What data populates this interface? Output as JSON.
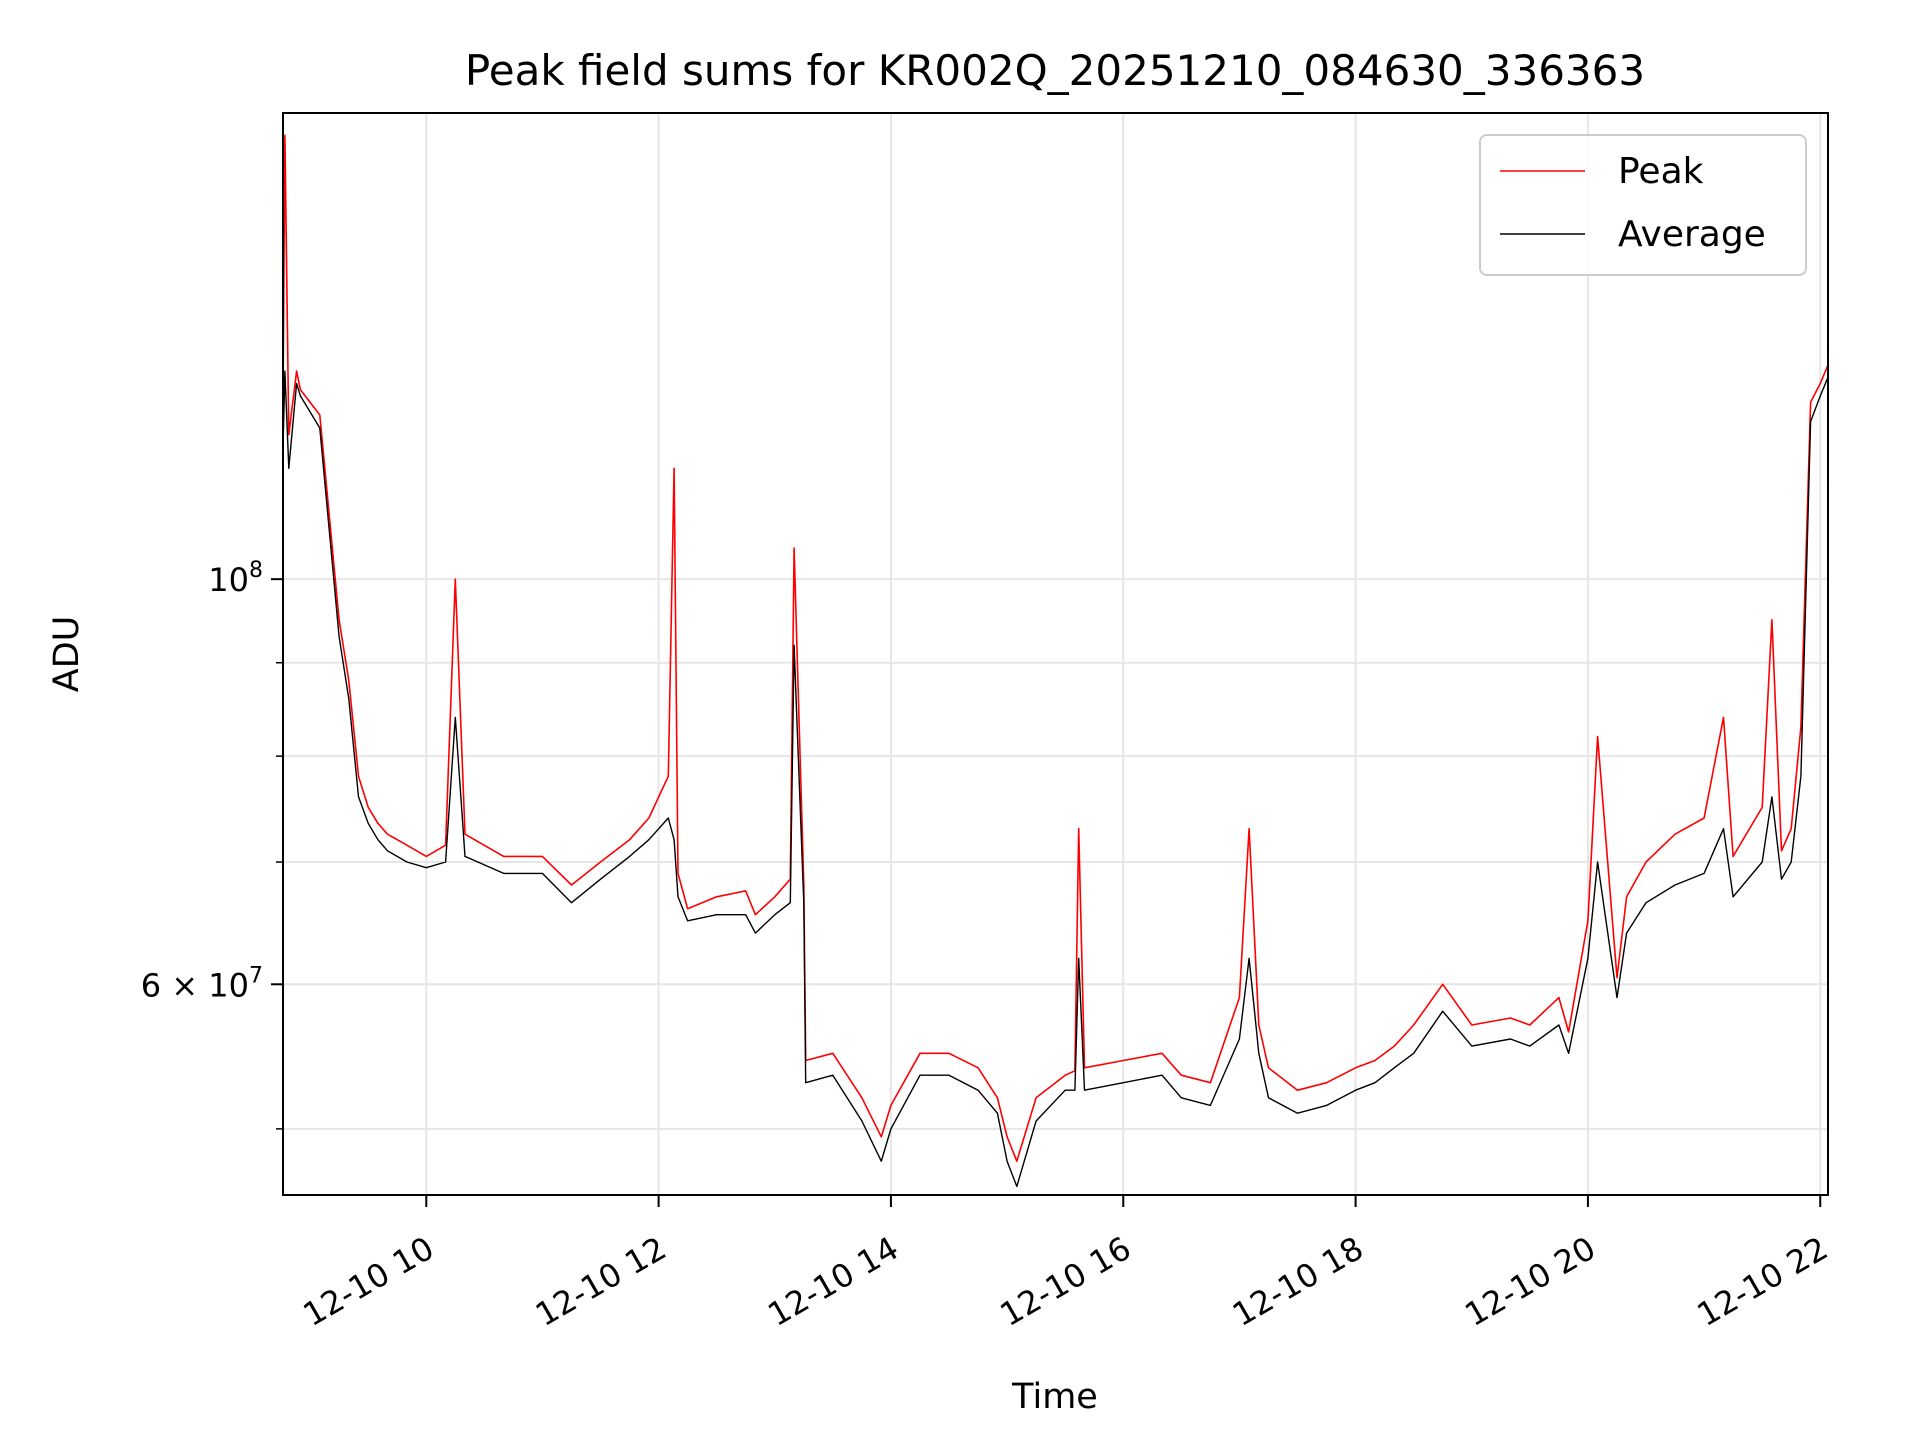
{
  "chart_data": {
    "type": "line",
    "title": "Peak field sums for KR002Q_20251210_084630_336363",
    "xlabel": "Time",
    "ylabel": "ADU",
    "y_scale": "log",
    "xlim": [
      "2025-12-10 08:46",
      "2025-12-10 22:04"
    ],
    "ylim": [
      46000000,
      180000000
    ],
    "grid": true,
    "legend_position": "top-right",
    "x_ticks": [
      {
        "value": "2025-12-10 10:00",
        "label": "12-10 10"
      },
      {
        "value": "2025-12-10 12:00",
        "label": "12-10 12"
      },
      {
        "value": "2025-12-10 14:00",
        "label": "12-10 14"
      },
      {
        "value": "2025-12-10 16:00",
        "label": "12-10 16"
      },
      {
        "value": "2025-12-10 18:00",
        "label": "12-10 18"
      },
      {
        "value": "2025-12-10 20:00",
        "label": "12-10 20"
      },
      {
        "value": "2025-12-10 22:00",
        "label": "12-10 22"
      }
    ],
    "y_major_ticks": [
      {
        "value": 60000000,
        "label": "6 × 10",
        "exp": "7"
      },
      {
        "value": 100000000,
        "label": "10",
        "exp": "8"
      }
    ],
    "y_minor_ticks": [
      50000000,
      70000000,
      80000000,
      90000000
    ],
    "series": [
      {
        "name": "Peak",
        "color": "#ff0000",
        "x": [
          "2025-12-10 08:46",
          "2025-12-10 08:47",
          "2025-12-10 08:49",
          "2025-12-10 08:53",
          "2025-12-10 08:55",
          "2025-12-10 09:05",
          "2025-12-10 09:10",
          "2025-12-10 09:15",
          "2025-12-10 09:20",
          "2025-12-10 09:25",
          "2025-12-10 09:30",
          "2025-12-10 09:35",
          "2025-12-10 09:40",
          "2025-12-10 09:50",
          "2025-12-10 10:00",
          "2025-12-10 10:10",
          "2025-12-10 10:15",
          "2025-12-10 10:20",
          "2025-12-10 10:40",
          "2025-12-10 11:00",
          "2025-12-10 11:15",
          "2025-12-10 11:30",
          "2025-12-10 11:45",
          "2025-12-10 11:55",
          "2025-12-10 12:05",
          "2025-12-10 12:08",
          "2025-12-10 12:10",
          "2025-12-10 12:15",
          "2025-12-10 12:30",
          "2025-12-10 12:45",
          "2025-12-10 12:50",
          "2025-12-10 13:00",
          "2025-12-10 13:08",
          "2025-12-10 13:10",
          "2025-12-10 13:15",
          "2025-12-10 13:16",
          "2025-12-10 13:30",
          "2025-12-10 13:45",
          "2025-12-10 13:55",
          "2025-12-10 14:00",
          "2025-12-10 14:15",
          "2025-12-10 14:30",
          "2025-12-10 14:45",
          "2025-12-10 14:55",
          "2025-12-10 15:00",
          "2025-12-10 15:05",
          "2025-12-10 15:15",
          "2025-12-10 15:30",
          "2025-12-10 15:35",
          "2025-12-10 15:37",
          "2025-12-10 15:40",
          "2025-12-10 16:00",
          "2025-12-10 16:20",
          "2025-12-10 16:30",
          "2025-12-10 16:45",
          "2025-12-10 17:00",
          "2025-12-10 17:05",
          "2025-12-10 17:10",
          "2025-12-10 17:15",
          "2025-12-10 17:30",
          "2025-12-10 17:45",
          "2025-12-10 18:00",
          "2025-12-10 18:10",
          "2025-12-10 18:20",
          "2025-12-10 18:30",
          "2025-12-10 18:45",
          "2025-12-10 19:00",
          "2025-12-10 19:20",
          "2025-12-10 19:30",
          "2025-12-10 19:45",
          "2025-12-10 19:50",
          "2025-12-10 20:00",
          "2025-12-10 20:05",
          "2025-12-10 20:15",
          "2025-12-10 20:20",
          "2025-12-10 20:30",
          "2025-12-10 20:45",
          "2025-12-10 21:00",
          "2025-12-10 21:10",
          "2025-12-10 21:15",
          "2025-12-10 21:30",
          "2025-12-10 21:35",
          "2025-12-10 21:40",
          "2025-12-10 21:45",
          "2025-12-10 21:50",
          "2025-12-10 21:55",
          "2025-12-10 22:00",
          "2025-12-10 22:04"
        ],
        "values": [
          125000000,
          175000000,
          120000000,
          130000000,
          127000000,
          123000000,
          108000000,
          95000000,
          88000000,
          78000000,
          75000000,
          73500000,
          72500000,
          71500000,
          70500000,
          71500000,
          100000000,
          72500000,
          70500000,
          70500000,
          68000000,
          70000000,
          72000000,
          74000000,
          78000000,
          115000000,
          69000000,
          66000000,
          67000000,
          67500000,
          65500000,
          67000000,
          68500000,
          104000000,
          68000000,
          54500000,
          55000000,
          52000000,
          49500000,
          51500000,
          55000000,
          55000000,
          54000000,
          52000000,
          49500000,
          48000000,
          52000000,
          53500000,
          53800000,
          73000000,
          54000000,
          54500000,
          55000000,
          53500000,
          53000000,
          59000000,
          73000000,
          57000000,
          54000000,
          52500000,
          53000000,
          54000000,
          54500000,
          55500000,
          57000000,
          60000000,
          57000000,
          57500000,
          57000000,
          59000000,
          56500000,
          65000000,
          82000000,
          60500000,
          67000000,
          70000000,
          72500000,
          74000000,
          84000000,
          70500000,
          75000000,
          95000000,
          71000000,
          73000000,
          83000000,
          125000000,
          128000000,
          131000000
        ]
      },
      {
        "name": "Average",
        "color": "#000000",
        "x": [
          "2025-12-10 08:46",
          "2025-12-10 08:47",
          "2025-12-10 08:49",
          "2025-12-10 08:53",
          "2025-12-10 08:55",
          "2025-12-10 09:05",
          "2025-12-10 09:10",
          "2025-12-10 09:15",
          "2025-12-10 09:20",
          "2025-12-10 09:25",
          "2025-12-10 09:30",
          "2025-12-10 09:35",
          "2025-12-10 09:40",
          "2025-12-10 09:50",
          "2025-12-10 10:00",
          "2025-12-10 10:10",
          "2025-12-10 10:15",
          "2025-12-10 10:20",
          "2025-12-10 10:40",
          "2025-12-10 11:00",
          "2025-12-10 11:15",
          "2025-12-10 11:30",
          "2025-12-10 11:45",
          "2025-12-10 11:55",
          "2025-12-10 12:05",
          "2025-12-10 12:08",
          "2025-12-10 12:10",
          "2025-12-10 12:15",
          "2025-12-10 12:30",
          "2025-12-10 12:45",
          "2025-12-10 12:50",
          "2025-12-10 13:00",
          "2025-12-10 13:08",
          "2025-12-10 13:10",
          "2025-12-10 13:15",
          "2025-12-10 13:16",
          "2025-12-10 13:30",
          "2025-12-10 13:45",
          "2025-12-10 13:55",
          "2025-12-10 14:00",
          "2025-12-10 14:15",
          "2025-12-10 14:30",
          "2025-12-10 14:45",
          "2025-12-10 14:55",
          "2025-12-10 15:00",
          "2025-12-10 15:05",
          "2025-12-10 15:15",
          "2025-12-10 15:30",
          "2025-12-10 15:35",
          "2025-12-10 15:37",
          "2025-12-10 15:40",
          "2025-12-10 16:00",
          "2025-12-10 16:20",
          "2025-12-10 16:30",
          "2025-12-10 16:45",
          "2025-12-10 17:00",
          "2025-12-10 17:05",
          "2025-12-10 17:10",
          "2025-12-10 17:15",
          "2025-12-10 17:30",
          "2025-12-10 17:45",
          "2025-12-10 18:00",
          "2025-12-10 18:10",
          "2025-12-10 18:20",
          "2025-12-10 18:30",
          "2025-12-10 18:45",
          "2025-12-10 19:00",
          "2025-12-10 19:20",
          "2025-12-10 19:30",
          "2025-12-10 19:45",
          "2025-12-10 19:50",
          "2025-12-10 20:00",
          "2025-12-10 20:05",
          "2025-12-10 20:15",
          "2025-12-10 20:20",
          "2025-12-10 20:30",
          "2025-12-10 20:45",
          "2025-12-10 21:00",
          "2025-12-10 21:10",
          "2025-12-10 21:15",
          "2025-12-10 21:30",
          "2025-12-10 21:35",
          "2025-12-10 21:40",
          "2025-12-10 21:45",
          "2025-12-10 21:50",
          "2025-12-10 21:55",
          "2025-12-10 22:00",
          "2025-12-10 22:04"
        ],
        "values": [
          118000000,
          130000000,
          115000000,
          128000000,
          126000000,
          121000000,
          106000000,
          93000000,
          86000000,
          76000000,
          73500000,
          72000000,
          71000000,
          70000000,
          69500000,
          70000000,
          84000000,
          70500000,
          69000000,
          69000000,
          66500000,
          68500000,
          70500000,
          72000000,
          74000000,
          72000000,
          67000000,
          65000000,
          65500000,
          65500000,
          64000000,
          65500000,
          66500000,
          92000000,
          66500000,
          53000000,
          53500000,
          50500000,
          48000000,
          50000000,
          53500000,
          53500000,
          52500000,
          51000000,
          48000000,
          46500000,
          50500000,
          52500000,
          52500000,
          62000000,
          52500000,
          53000000,
          53500000,
          52000000,
          51500000,
          56000000,
          62000000,
          55000000,
          52000000,
          51000000,
          51500000,
          52500000,
          53000000,
          54000000,
          55000000,
          58000000,
          55500000,
          56000000,
          55500000,
          57000000,
          55000000,
          62000000,
          70000000,
          59000000,
          64000000,
          66500000,
          68000000,
          69000000,
          73000000,
          67000000,
          70000000,
          76000000,
          68500000,
          70000000,
          78000000,
          122000000,
          126000000,
          129000000
        ]
      }
    ]
  }
}
